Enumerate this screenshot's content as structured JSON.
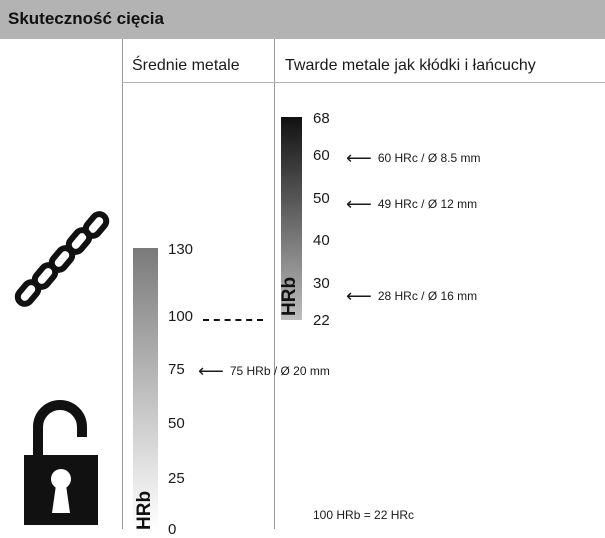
{
  "header": {
    "title": "Skuteczność cięcia"
  },
  "columns": {
    "medium": "Średnie metale",
    "hard": "Twarde metale jak kłódki i łańcuchy"
  },
  "icons": {
    "chain": "chain-icon",
    "padlock": "padlock-icon"
  },
  "scales": {
    "hrb_label": "HRb",
    "medium_ticks": [
      "130",
      "100",
      "75",
      "50",
      "25",
      "0"
    ],
    "hard_ticks": [
      "68",
      "60",
      "50",
      "40",
      "30",
      "22"
    ]
  },
  "annotations": {
    "hrc60": "60 HRc / Ø 8.5 mm",
    "hrc49": "49 HRc / Ø 12 mm",
    "hrc28": "28 HRc / Ø 16 mm",
    "hrb75": "75 HRb / Ø 20 mm"
  },
  "footnote": "100 HRb = 22 HRc",
  "colors": {
    "header_bg": "#b3b3b3",
    "bar_dark": "#111111",
    "bar_light": "#ffffff"
  }
}
